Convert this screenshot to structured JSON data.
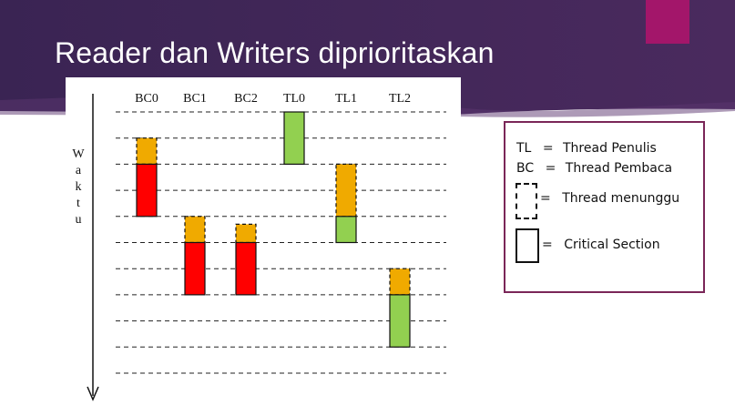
{
  "slide": {
    "title": "Reader dan Writers diprioritaskan",
    "colors": {
      "banner": "#3b2556",
      "accent": "#a3166a",
      "legend_border": "#7a2658"
    }
  },
  "diagram": {
    "axis_label": [
      "W",
      "a",
      "k",
      "t",
      "u"
    ],
    "columns": [
      "BC0",
      "BC1",
      "BC2",
      "TL0",
      "TL1",
      "TL2"
    ],
    "colors": {
      "waiting": "#f0aa00",
      "critical_reader": "#ff0000",
      "critical_writer": "#92d050"
    },
    "time_levels": 10,
    "bars": [
      {
        "column": "BC0",
        "state": "waiting",
        "start": 1,
        "end": 2
      },
      {
        "column": "BC0",
        "state": "critical",
        "start": 2,
        "end": 4
      },
      {
        "column": "BC1",
        "state": "waiting",
        "start": 4,
        "end": 5
      },
      {
        "column": "BC1",
        "state": "critical",
        "start": 5,
        "end": 7
      },
      {
        "column": "BC2",
        "state": "waiting",
        "start": 4.3,
        "end": 5
      },
      {
        "column": "BC2",
        "state": "critical",
        "start": 5,
        "end": 7
      },
      {
        "column": "TL0",
        "state": "critical",
        "start": 0,
        "end": 2
      },
      {
        "column": "TL1",
        "state": "waiting",
        "start": 2,
        "end": 4
      },
      {
        "column": "TL1",
        "state": "critical",
        "start": 4,
        "end": 5
      },
      {
        "column": "TL2",
        "state": "waiting",
        "start": 6,
        "end": 7
      },
      {
        "column": "TL2",
        "state": "critical",
        "start": 7,
        "end": 9
      }
    ]
  },
  "legend": {
    "tl": {
      "abbr": "TL",
      "eq": "=",
      "text": "Thread Penulis"
    },
    "bc": {
      "abbr": "BC",
      "eq": "=",
      "text": "Thread Pembaca"
    },
    "waiting": {
      "eq": "=",
      "text": "Thread menunggu"
    },
    "critical": {
      "eq": "=",
      "text": "Critical Section"
    }
  }
}
